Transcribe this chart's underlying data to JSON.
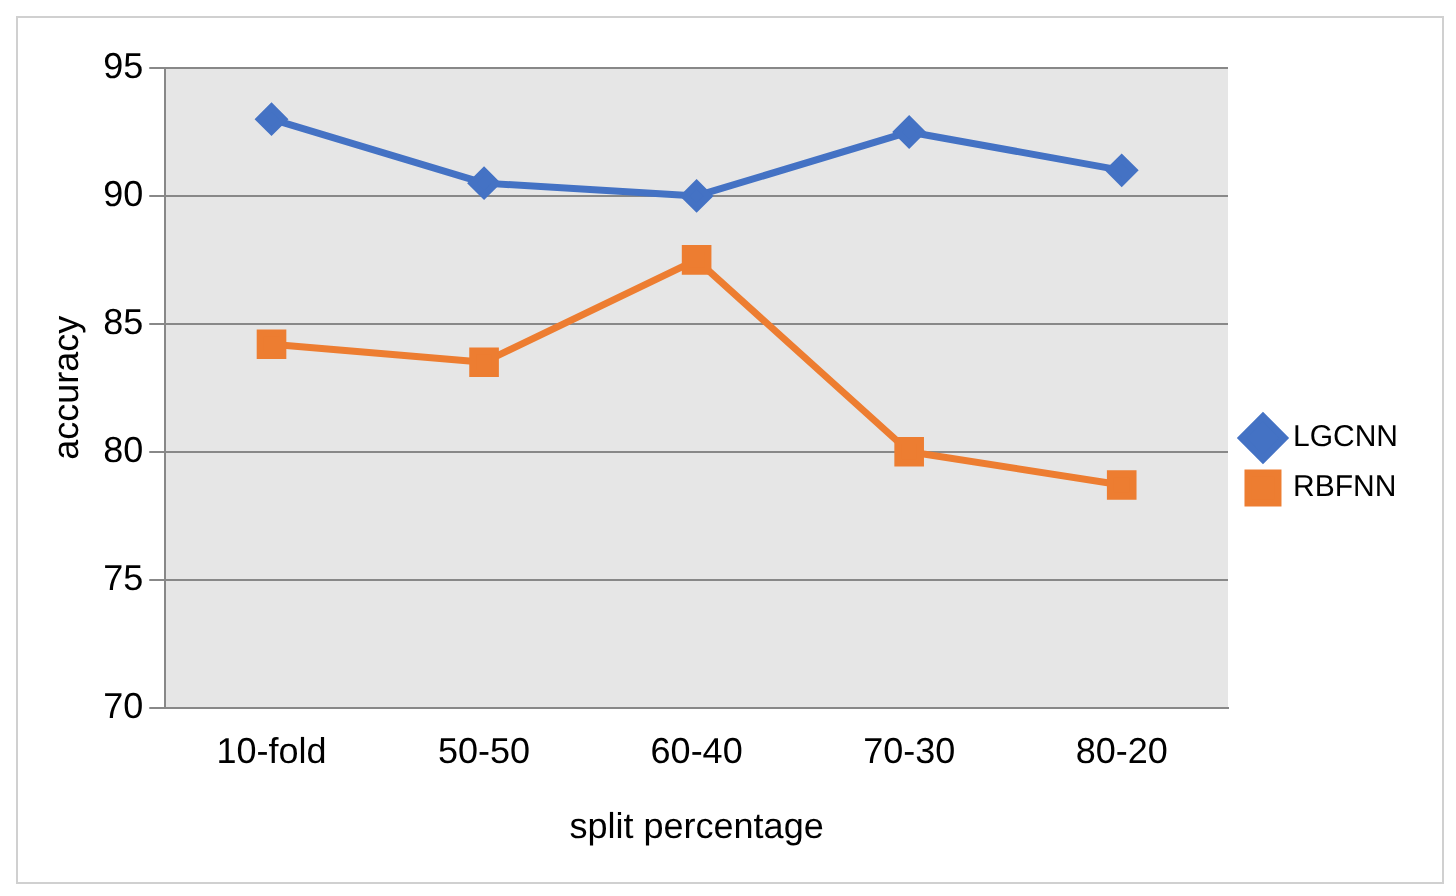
{
  "chart_data": {
    "type": "line",
    "xlabel": "split percentage",
    "ylabel": "accuracy",
    "categories": [
      "10-fold",
      "50-50",
      "60-40",
      "70-30",
      "80-20"
    ],
    "series": [
      {
        "name": "LGCNN",
        "color": "#4472c4",
        "marker": "diamond",
        "values": [
          93,
          90.5,
          90,
          92.5,
          91
        ]
      },
      {
        "name": "RBFNN",
        "color": "#ed7d31",
        "marker": "square",
        "values": [
          84.2,
          83.5,
          87.5,
          80,
          78.7
        ]
      }
    ],
    "ylim": [
      70,
      95
    ],
    "yticks": [
      70,
      75,
      80,
      85,
      90,
      95
    ],
    "grid": "y",
    "legend": "right"
  }
}
